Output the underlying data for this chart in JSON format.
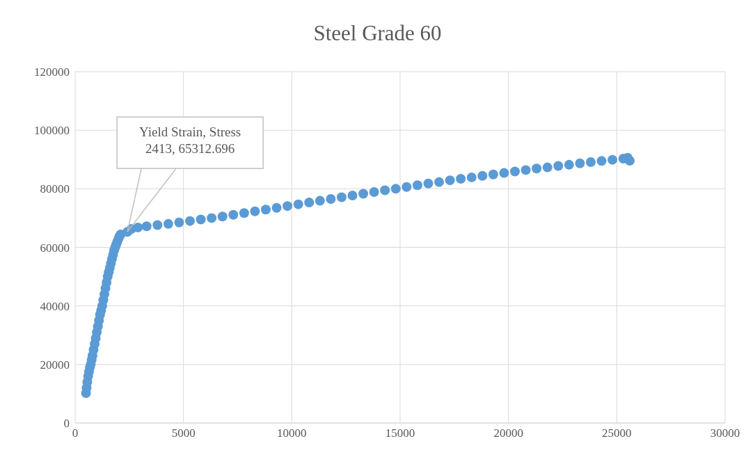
{
  "chart_data": {
    "type": "scatter",
    "title": "Steel Grade 60",
    "x": [
      500,
      530,
      560,
      600,
      640,
      680,
      720,
      760,
      800,
      850,
      900,
      950,
      1000,
      1050,
      1100,
      1150,
      1200,
      1250,
      1300,
      1350,
      1400,
      1450,
      1500,
      1550,
      1600,
      1650,
      1700,
      1750,
      1800,
      1850,
      1900,
      1950,
      2000,
      2050,
      2100,
      2413,
      2600,
      2900,
      3300,
      3800,
      4300,
      4800,
      5300,
      5800,
      6300,
      6800,
      7300,
      7800,
      8300,
      8800,
      9300,
      9800,
      10300,
      10800,
      11300,
      11800,
      12300,
      12800,
      13300,
      13800,
      14300,
      14800,
      15300,
      15800,
      16300,
      16800,
      17300,
      17800,
      18300,
      18800,
      19300,
      19800,
      20300,
      20800,
      21300,
      21800,
      22300,
      22800,
      23300,
      23800,
      24300,
      24800,
      25300,
      25500,
      25600
    ],
    "series": [
      {
        "color": "#5b9bd5",
        "values": [
          10200,
          12000,
          14000,
          16000,
          17500,
          19000,
          20000,
          21500,
          23000,
          25000,
          27000,
          29000,
          31000,
          33000,
          35000,
          37000,
          38500,
          40000,
          42000,
          44000,
          46000,
          48000,
          50000,
          51500,
          53000,
          54500,
          56000,
          57500,
          59000,
          60000,
          61000,
          62000,
          63000,
          63800,
          64400,
          65300,
          66300,
          66800,
          67200,
          67600,
          68000,
          68500,
          69000,
          69500,
          70000,
          70500,
          71100,
          71700,
          72300,
          72900,
          73500,
          74100,
          74700,
          75300,
          75900,
          76500,
          77100,
          77700,
          78300,
          78900,
          79500,
          80000,
          80600,
          81200,
          81800,
          82300,
          82900,
          83400,
          83900,
          84400,
          84900,
          85400,
          85900,
          86400,
          86900,
          87300,
          87800,
          88200,
          88700,
          89100,
          89500,
          89900,
          90300,
          90600,
          89600
        ]
      }
    ],
    "xlim": [
      0,
      30000
    ],
    "xticks": [
      0,
      5000,
      10000,
      15000,
      20000,
      25000,
      30000
    ],
    "ylim": [
      0,
      120000
    ],
    "yticks": [
      0,
      20000,
      40000,
      60000,
      80000,
      100000,
      120000
    ],
    "grid": true,
    "marker": "circle",
    "legend": false,
    "annotations": [
      {
        "text": "Yield Strain, Stress\n2413, 65312.696",
        "x": 2413,
        "y": 65312.696
      }
    ]
  }
}
